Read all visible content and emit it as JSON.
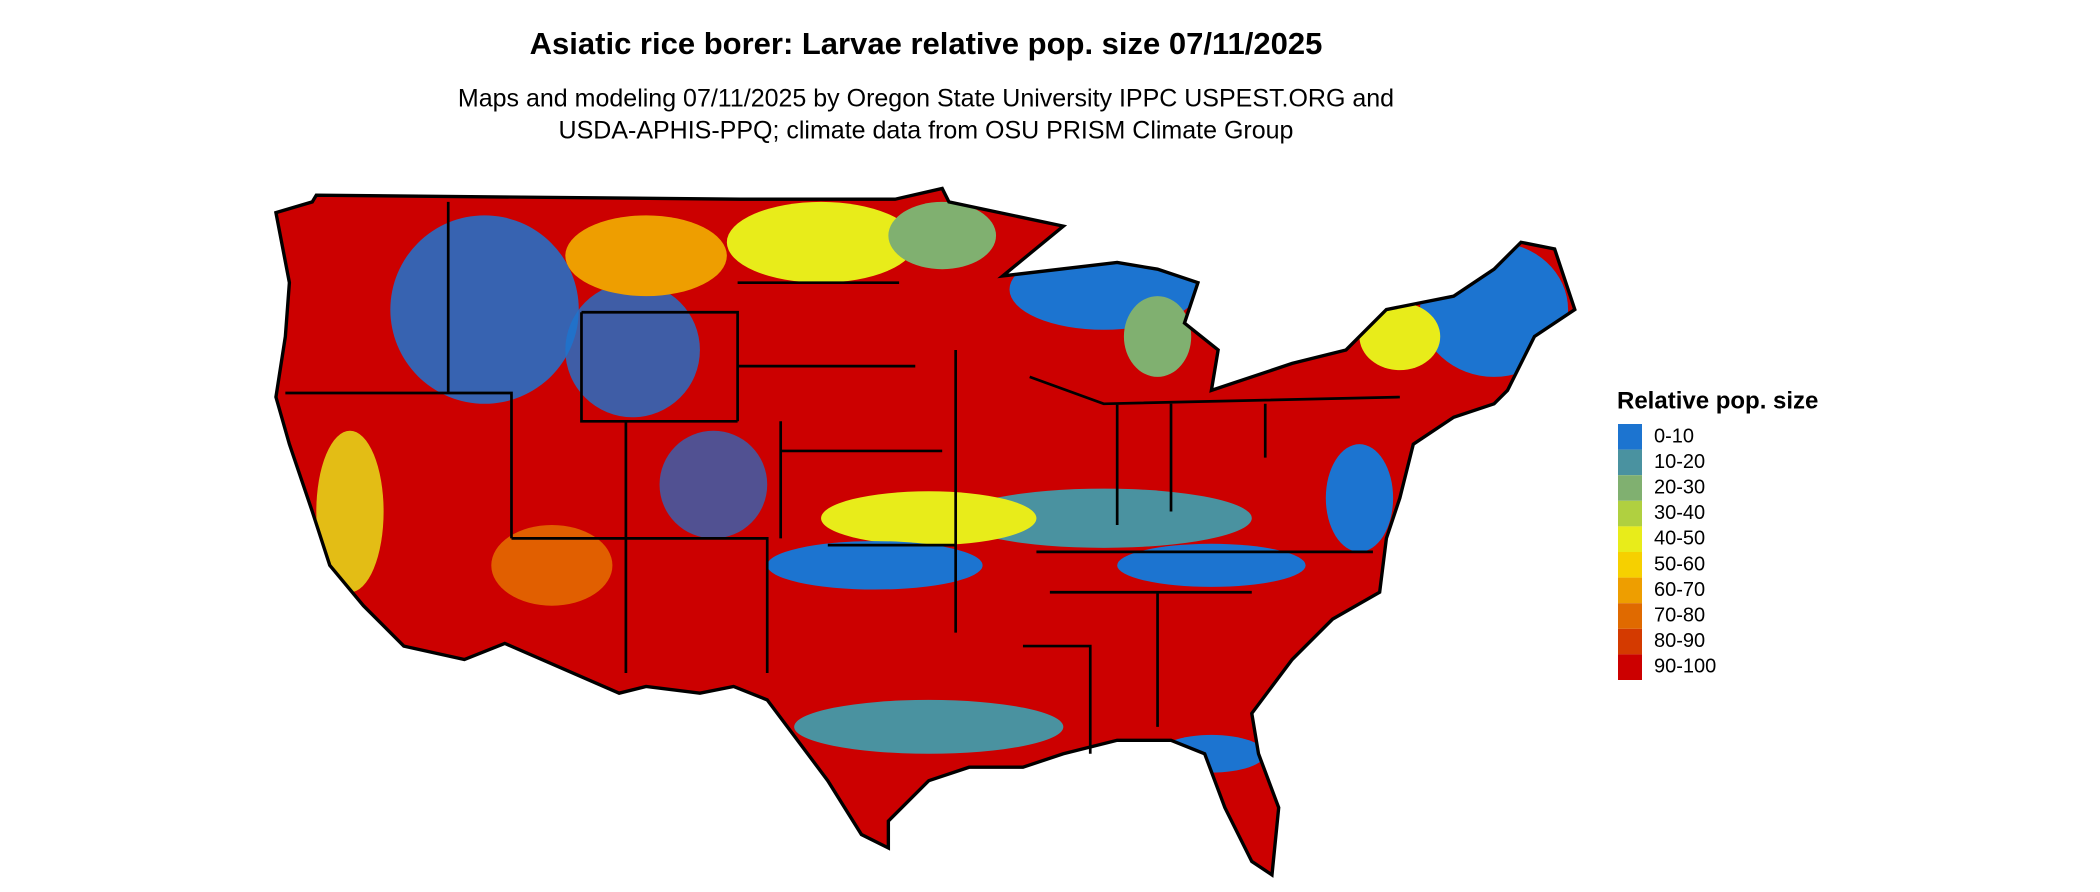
{
  "title": "Asiatic rice borer: Larvae relative pop. size 07/11/2025",
  "subtitle": [
    "Maps and modeling 07/11/2025 by Oregon State University IPPC USPEST.ORG and",
    "USDA-APHIS-PPQ; climate data from OSU PRISM Climate Group"
  ],
  "legend": {
    "title": "Relative pop. size",
    "items": [
      {
        "label": "0-10",
        "color": "#1c74d0"
      },
      {
        "label": "10-20",
        "color": "#4a92a0"
      },
      {
        "label": "20-30",
        "color": "#80b070"
      },
      {
        "label": "30-40",
        "color": "#b0d040"
      },
      {
        "label": "40-50",
        "color": "#e8ec1a"
      },
      {
        "label": "50-60",
        "color": "#f6d000"
      },
      {
        "label": "60-70",
        "color": "#ee9e00"
      },
      {
        "label": "70-80",
        "color": "#e06a00"
      },
      {
        "label": "80-90",
        "color": "#d43a00"
      },
      {
        "label": "90-100",
        "color": "#cc0000"
      }
    ]
  }
}
